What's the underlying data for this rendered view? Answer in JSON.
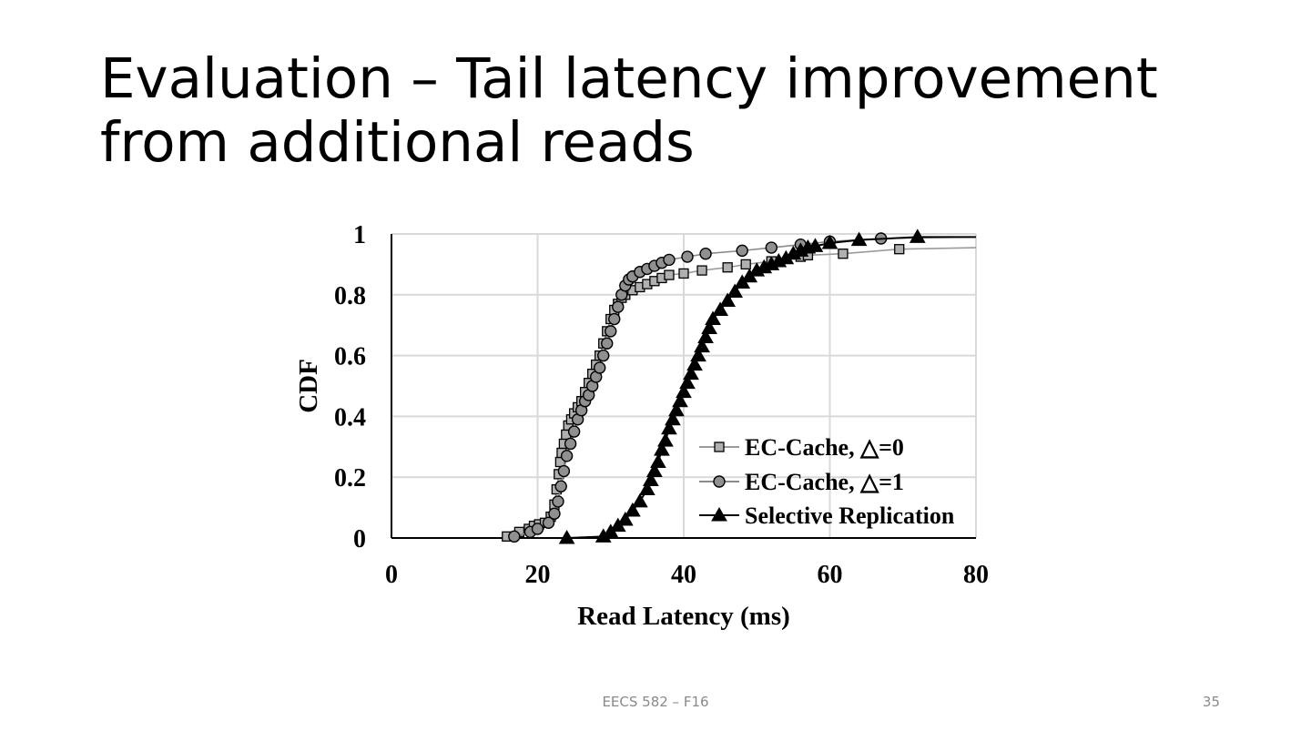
{
  "slide": {
    "title_line1": "Evaluation – Tail latency improvement",
    "title_line2": "from additional reads",
    "footer": "EECS 582 – F16",
    "page_number": "35"
  },
  "chart_data": {
    "type": "line",
    "title": "",
    "xlabel": "Read Latency (ms)",
    "ylabel": "CDF",
    "xlim": [
      0,
      80
    ],
    "ylim": [
      0,
      1
    ],
    "xticks": [
      "0",
      "20",
      "40",
      "60",
      "80"
    ],
    "yticks": [
      "0",
      "0.2",
      "0.4",
      "0.6",
      "0.8",
      "1"
    ],
    "grid": true,
    "legend_position": "bottom-right",
    "series": [
      {
        "name": "EC-Cache, △=0",
        "marker": "square",
        "line_color": "#9a9a9a",
        "marker_fill": "#b0b0b0",
        "x": [
          15.8,
          17.5,
          18.8,
          19.5,
          20.2,
          21.0,
          21.8,
          22.3,
          22.6,
          22.9,
          23.1,
          23.3,
          23.6,
          23.9,
          24.2,
          24.6,
          25.0,
          25.5,
          26.0,
          26.5,
          27.0,
          27.5,
          28.0,
          28.5,
          29.0,
          29.5,
          30.0,
          30.5,
          31.0,
          31.5,
          32.0,
          33.0,
          34.0,
          35.0,
          36.0,
          37.0,
          38.0,
          40.0,
          42.5,
          46.0,
          48.5,
          52.0,
          56.0,
          57.0,
          61.8,
          69.5,
          80.0
        ],
        "y": [
          0.005,
          0.02,
          0.03,
          0.04,
          0.045,
          0.05,
          0.07,
          0.11,
          0.16,
          0.21,
          0.25,
          0.28,
          0.31,
          0.34,
          0.37,
          0.39,
          0.41,
          0.43,
          0.45,
          0.48,
          0.51,
          0.54,
          0.57,
          0.6,
          0.64,
          0.68,
          0.72,
          0.75,
          0.77,
          0.79,
          0.8,
          0.815,
          0.825,
          0.835,
          0.845,
          0.855,
          0.865,
          0.87,
          0.88,
          0.89,
          0.9,
          0.91,
          0.925,
          0.93,
          0.935,
          0.95,
          0.955
        ]
      },
      {
        "name": "EC-Cache, △=1",
        "marker": "circle",
        "line_color": "#8a8a8a",
        "marker_fill": "#909090",
        "x": [
          16.8,
          19.0,
          20.0,
          21.5,
          22.3,
          22.8,
          23.2,
          23.6,
          24.0,
          24.5,
          25.0,
          25.5,
          26.0,
          26.5,
          27.0,
          27.5,
          28.0,
          28.5,
          29.0,
          29.5,
          30.0,
          30.5,
          31.0,
          31.5,
          32.0,
          32.5,
          33.0,
          34.0,
          35.0,
          36.0,
          37.0,
          38.0,
          40.5,
          43.0,
          48.0,
          52.0,
          56.0,
          60.0,
          67.0,
          80.0
        ],
        "y": [
          0.005,
          0.02,
          0.03,
          0.05,
          0.08,
          0.12,
          0.17,
          0.22,
          0.27,
          0.31,
          0.35,
          0.39,
          0.42,
          0.45,
          0.47,
          0.5,
          0.53,
          0.56,
          0.6,
          0.64,
          0.68,
          0.72,
          0.76,
          0.8,
          0.83,
          0.85,
          0.86,
          0.875,
          0.885,
          0.895,
          0.905,
          0.915,
          0.925,
          0.935,
          0.945,
          0.955,
          0.965,
          0.975,
          0.985,
          0.99
        ]
      },
      {
        "name": "Selective Replication",
        "marker": "triangle",
        "line_color": "#000000",
        "marker_fill": "#000000",
        "x": [
          24.0,
          29.0,
          30.0,
          31.0,
          32.0,
          33.0,
          34.0,
          35.0,
          35.5,
          36.0,
          36.5,
          37.0,
          37.5,
          38.0,
          38.5,
          39.0,
          39.5,
          40.0,
          40.5,
          41.0,
          41.5,
          42.0,
          42.5,
          43.0,
          43.5,
          44.0,
          45.0,
          46.0,
          47.0,
          48.0,
          49.0,
          50.0,
          51.0,
          52.0,
          53.0,
          54.0,
          55.0,
          56.0,
          57.0,
          58.0,
          60.0,
          64.0,
          72.0,
          80.0
        ],
        "y": [
          0.0,
          0.005,
          0.02,
          0.04,
          0.06,
          0.09,
          0.12,
          0.16,
          0.19,
          0.22,
          0.25,
          0.29,
          0.32,
          0.36,
          0.39,
          0.42,
          0.45,
          0.48,
          0.51,
          0.54,
          0.57,
          0.6,
          0.63,
          0.66,
          0.69,
          0.72,
          0.75,
          0.78,
          0.81,
          0.84,
          0.86,
          0.88,
          0.89,
          0.9,
          0.91,
          0.92,
          0.935,
          0.945,
          0.955,
          0.96,
          0.97,
          0.98,
          0.99,
          0.99
        ]
      }
    ]
  }
}
